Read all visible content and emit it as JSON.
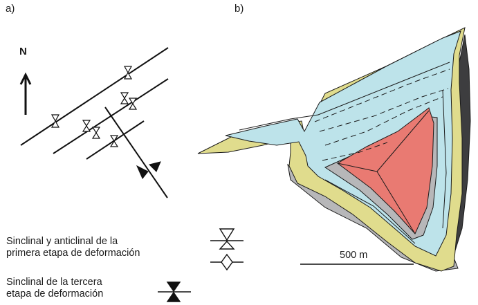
{
  "panels": {
    "a": "a)",
    "b": "b)"
  },
  "north": "N",
  "legend": {
    "item1": [
      "Sinclinal y anticlinal de la",
      "primera etapa de deformación"
    ],
    "item2": [
      "Sinclinal de la tercera",
      "etapa de deformación"
    ]
  },
  "scale": "500 m",
  "colors": {
    "yellow": "#e0dc8d",
    "blue": "#bde3ea",
    "red": "#e97a72",
    "gray": "#b7b7b9",
    "dark": "#3d3d3f"
  }
}
